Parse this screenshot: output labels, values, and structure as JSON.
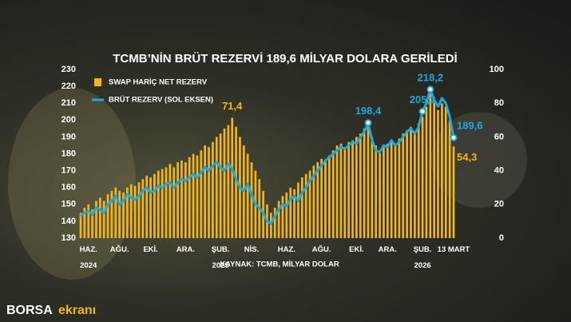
{
  "chart_data": {
    "type": "bar",
    "title": "TCMB’NİN BRÜT REZERVİ 189,6 MİLYAR DOLARA GERİLEDİ",
    "source": "KAYNAK: TCMB, MİLYAR DOLAR",
    "categories": [
      null,
      null,
      "HAZ.\n2024",
      null,
      null,
      null,
      null,
      null,
      null,
      null,
      "AĞU.",
      null,
      null,
      null,
      null,
      null,
      null,
      null,
      "EKİ.",
      null,
      null,
      null,
      null,
      null,
      null,
      null,
      null,
      "ARA.",
      null,
      null,
      null,
      null,
      null,
      null,
      null,
      null,
      "ŞUB.\n2025",
      null,
      null,
      null,
      null,
      null,
      null,
      null,
      "NİS.",
      null,
      null,
      null,
      null,
      null,
      null,
      null,
      null,
      "HAZ.",
      null,
      null,
      null,
      null,
      null,
      null,
      null,
      null,
      "AĞU.",
      null,
      null,
      null,
      null,
      null,
      null,
      null,
      null,
      "EKİ.",
      null,
      null,
      null,
      null,
      null,
      null,
      null,
      "ARA.",
      null,
      null,
      null,
      null,
      null,
      null,
      null,
      null,
      "ŞUB.\n2026",
      null,
      null,
      null,
      null,
      null,
      null,
      null,
      "13 MART"
    ],
    "series": [
      {
        "name": "SWAP HARİÇ NET REZERV",
        "type": "bar",
        "axis": "y2",
        "color": "#f2b619",
        "values": [
          15,
          18,
          20,
          17,
          22,
          24,
          22,
          26,
          28,
          30,
          28,
          27,
          30,
          32,
          31,
          33,
          35,
          37,
          36,
          38,
          40,
          41,
          42,
          44,
          42,
          45,
          46,
          45,
          48,
          50,
          49,
          52,
          55,
          54,
          57,
          60,
          62,
          65,
          67,
          71.4,
          66,
          60,
          55,
          50,
          45,
          40,
          35,
          28,
          20,
          15,
          18,
          22,
          25,
          27,
          30,
          29,
          33,
          36,
          38,
          40,
          43,
          45,
          47,
          46,
          49,
          52,
          55,
          56,
          54,
          57,
          58,
          60,
          62,
          65,
          68,
          60,
          55,
          52,
          54,
          56,
          58,
          56,
          59,
          62,
          64,
          66,
          63,
          68,
          72,
          78,
          86,
          82,
          76,
          80,
          78,
          70,
          54.3
        ],
        "value_labels": [
          null,
          null,
          null,
          null,
          null,
          null,
          null,
          null,
          null,
          null,
          null,
          null,
          null,
          null,
          null,
          null,
          null,
          null,
          null,
          null,
          null,
          null,
          null,
          null,
          null,
          null,
          null,
          null,
          null,
          null,
          null,
          null,
          null,
          null,
          null,
          null,
          null,
          null,
          null,
          "71,4",
          null,
          null,
          null,
          null,
          null,
          null,
          null,
          null,
          null,
          null,
          null,
          null,
          null,
          null,
          null,
          null,
          null,
          null,
          null,
          null,
          null,
          null,
          null,
          null,
          null,
          null,
          null,
          null,
          null,
          null,
          null,
          null,
          null,
          null,
          null,
          null,
          null,
          null,
          null,
          null,
          null,
          null,
          null,
          null,
          null,
          null,
          null,
          null,
          null,
          null,
          null,
          null,
          null,
          null,
          null,
          null,
          "54,3"
        ]
      },
      {
        "name": "BRÜT REZERV (SOL EKSEN)",
        "type": "line",
        "axis": "y",
        "color": "#1ea7e1",
        "values": [
          143,
          145,
          146,
          144,
          148,
          147,
          145,
          150,
          152,
          155,
          150,
          152,
          156,
          154,
          153,
          155,
          158,
          160,
          157,
          158,
          161,
          160,
          162,
          163,
          160,
          163,
          165,
          164,
          166,
          168,
          166,
          169,
          172,
          170,
          173,
          175,
          172,
          170,
          174,
          171,
          165,
          160,
          158,
          162,
          156,
          150,
          148,
          145,
          140,
          138.5,
          143,
          147,
          150,
          149,
          153,
          155,
          152,
          157,
          160,
          164,
          167,
          170,
          173,
          176,
          178,
          180,
          182,
          184,
          183,
          185,
          187,
          186,
          190,
          193,
          198.4,
          188,
          182,
          181,
          185,
          184,
          188,
          185,
          187,
          190,
          193,
          195,
          192,
          196,
          205.2,
          210,
          218.2,
          212,
          208,
          213,
          210,
          202,
          189.6
        ],
        "value_labels": [
          null,
          null,
          null,
          null,
          null,
          null,
          null,
          null,
          null,
          null,
          null,
          null,
          null,
          null,
          null,
          null,
          null,
          null,
          null,
          null,
          null,
          null,
          null,
          null,
          null,
          null,
          null,
          null,
          null,
          null,
          null,
          null,
          null,
          null,
          null,
          null,
          null,
          null,
          null,
          null,
          null,
          null,
          null,
          null,
          null,
          null,
          null,
          null,
          null,
          null,
          null,
          null,
          null,
          null,
          null,
          null,
          null,
          null,
          null,
          null,
          null,
          null,
          null,
          null,
          null,
          null,
          null,
          null,
          null,
          null,
          null,
          null,
          null,
          null,
          "198,4",
          null,
          null,
          null,
          null,
          null,
          null,
          null,
          null,
          null,
          null,
          null,
          null,
          null,
          "205,2",
          null,
          "218,2",
          null,
          null,
          null,
          null,
          null,
          "189,6"
        ]
      }
    ],
    "ylim": [
      130,
      230
    ],
    "yticks": [
      130,
      140,
      150,
      160,
      170,
      180,
      190,
      200,
      210,
      220,
      230
    ],
    "y2lim": [
      0,
      100
    ],
    "y2ticks": [
      0,
      20,
      40,
      60,
      80,
      100
    ]
  },
  "footer": {
    "brand": "BORSA",
    "brand_suffix": "ekranı"
  }
}
